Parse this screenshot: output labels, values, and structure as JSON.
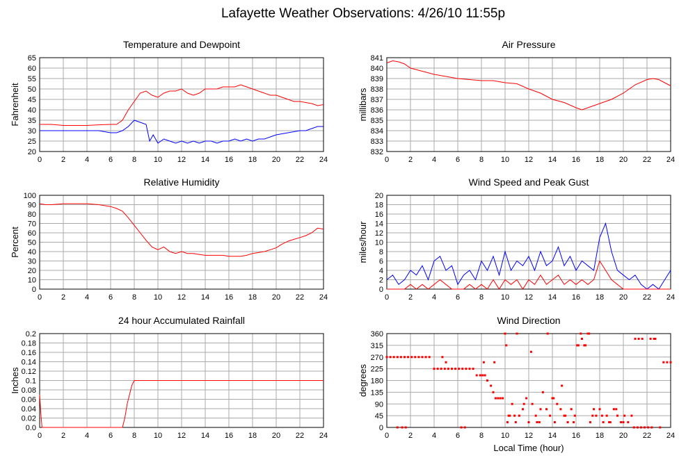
{
  "title": "Lafayette Weather Observations: 4/26/10 11:55p",
  "xlabel_bottom": "Local Time (hour)",
  "colors": {
    "red": "#ff0000",
    "blue": "#0000ff",
    "grid": "#aaaaaa"
  },
  "chart_data": [
    {
      "id": "temp",
      "type": "line",
      "title": "Temperature and Dewpoint",
      "ylabel": "Fahrenheit",
      "xlim": [
        0,
        24
      ],
      "ylim": [
        20,
        65
      ],
      "xticks": [
        0,
        2,
        4,
        6,
        8,
        10,
        12,
        14,
        16,
        18,
        20,
        22,
        24
      ],
      "yticks": [
        20,
        25,
        30,
        35,
        40,
        45,
        50,
        55,
        60,
        65
      ],
      "series": [
        {
          "color": "#ff0000",
          "x": [
            0,
            1,
            2,
            3,
            4,
            5,
            6,
            6.5,
            7,
            7.5,
            8,
            8.5,
            9,
            9.5,
            10,
            10.5,
            11,
            11.5,
            12,
            12.5,
            13,
            13.5,
            14,
            14.5,
            15,
            15.5,
            16,
            16.5,
            17,
            17.5,
            18,
            18.5,
            19,
            19.5,
            20,
            20.5,
            21,
            21.5,
            22,
            22.5,
            23,
            23.5,
            24
          ],
          "y": [
            33,
            33,
            32.5,
            32.5,
            32.5,
            32.8,
            33,
            33,
            35,
            40,
            44,
            48,
            49,
            47,
            46,
            48,
            49,
            49,
            50,
            48,
            47,
            48,
            50,
            50,
            50,
            51,
            51,
            51,
            52,
            51,
            50,
            49,
            48,
            47,
            47,
            46,
            45,
            44,
            44,
            43.5,
            43,
            42,
            42.5
          ]
        },
        {
          "color": "#0000ff",
          "x": [
            0,
            1,
            2,
            3,
            4,
            5,
            6,
            6.5,
            7,
            7.5,
            8,
            8.5,
            9,
            9.3,
            9.6,
            10,
            10.5,
            11,
            11.5,
            12,
            12.5,
            13,
            13.5,
            14,
            14.5,
            15,
            15.5,
            16,
            16.5,
            17,
            17.5,
            18,
            18.5,
            19,
            19.5,
            20,
            20.5,
            21,
            21.5,
            22,
            22.5,
            23,
            23.5,
            24
          ],
          "y": [
            30,
            30,
            30,
            30,
            30,
            30,
            29,
            29,
            30,
            32,
            35,
            34,
            33,
            25,
            28,
            24,
            26,
            25,
            24,
            25,
            24,
            25,
            24,
            25,
            25,
            24,
            25,
            25,
            26,
            25,
            26,
            25,
            26,
            26,
            27,
            28,
            28.5,
            29,
            29.5,
            30,
            30,
            31,
            32,
            32
          ]
        }
      ]
    },
    {
      "id": "pressure",
      "type": "line",
      "title": "Air Pressure",
      "ylabel": "millibars",
      "xlim": [
        0,
        24
      ],
      "ylim": [
        832,
        841
      ],
      "xticks": [
        0,
        2,
        4,
        6,
        8,
        10,
        12,
        14,
        16,
        18,
        20,
        22,
        24
      ],
      "yticks": [
        832,
        833,
        834,
        835,
        836,
        837,
        838,
        839,
        840,
        841
      ],
      "ytick_labels": [
        "832",
        "833",
        "834",
        "835",
        "836",
        "837",
        "838",
        "839",
        "840",
        "841"
      ],
      "series": [
        {
          "color": "#ff0000",
          "x": [
            0,
            0.5,
            1,
            1.5,
            2,
            3,
            4,
            5,
            6,
            7,
            8,
            9,
            10,
            11,
            12,
            13,
            14,
            15,
            16,
            16.5,
            17,
            18,
            19,
            20,
            21,
            22,
            22.5,
            23,
            23.5,
            24
          ],
          "y": [
            840.5,
            840.7,
            840.6,
            840.4,
            840.0,
            839.7,
            839.4,
            839.2,
            839.0,
            838.9,
            838.8,
            838.8,
            838.6,
            838.5,
            838.0,
            837.6,
            837.0,
            836.7,
            836.2,
            836.0,
            836.2,
            836.6,
            837.0,
            837.6,
            838.4,
            838.9,
            839.0,
            838.9,
            838.6,
            838.3
          ]
        }
      ]
    },
    {
      "id": "humidity",
      "type": "line",
      "title": "Relative Humidity",
      "ylabel": "Percent",
      "xlim": [
        0,
        24
      ],
      "ylim": [
        0,
        100
      ],
      "xticks": [
        0,
        2,
        4,
        6,
        8,
        10,
        12,
        14,
        16,
        18,
        20,
        22,
        24
      ],
      "yticks": [
        0,
        10,
        20,
        30,
        40,
        50,
        60,
        70,
        80,
        90,
        100
      ],
      "series": [
        {
          "color": "#ff0000",
          "x": [
            0,
            0.5,
            1,
            2,
            3,
            4,
            5,
            6,
            6.5,
            7,
            7.5,
            8,
            8.5,
            9,
            9.5,
            10,
            10.5,
            11,
            11.5,
            12,
            12.5,
            13,
            13.5,
            14,
            14.5,
            15,
            15.5,
            16,
            16.5,
            17,
            17.5,
            18,
            18.5,
            19,
            19.5,
            20,
            20.5,
            21,
            21.5,
            22,
            22.5,
            23,
            23.5,
            24
          ],
          "y": [
            91,
            90,
            90,
            91,
            91,
            91,
            90,
            88,
            86,
            83,
            76,
            68,
            60,
            52,
            45,
            42,
            45,
            40,
            38,
            40,
            38,
            38,
            37,
            36,
            36,
            36,
            36,
            35,
            35,
            35,
            36,
            38,
            39,
            40,
            42,
            44,
            48,
            51,
            53,
            55,
            57,
            60,
            65,
            64
          ]
        }
      ]
    },
    {
      "id": "wind",
      "type": "line",
      "title": "Wind Speed and Peak Gust",
      "ylabel": "miles/hour",
      "xlim": [
        0,
        24
      ],
      "ylim": [
        0,
        20
      ],
      "xticks": [
        0,
        2,
        4,
        6,
        8,
        10,
        12,
        14,
        16,
        18,
        20,
        22,
        24
      ],
      "yticks": [
        0,
        2,
        4,
        6,
        8,
        10,
        12,
        14,
        16,
        18,
        20
      ],
      "series": [
        {
          "color": "#0000ff",
          "x": [
            0,
            0.5,
            1,
            1.5,
            2,
            2.5,
            3,
            3.5,
            4,
            4.5,
            5,
            5.5,
            6,
            6.5,
            7,
            7.5,
            8,
            8.5,
            9,
            9.5,
            10,
            10.5,
            11,
            11.5,
            12,
            12.5,
            13,
            13.5,
            14,
            14.5,
            15,
            15.5,
            16,
            16.5,
            17,
            17.5,
            18,
            18.5,
            19,
            19.5,
            20,
            20.5,
            21,
            21.5,
            22,
            22.5,
            23,
            23.5,
            24
          ],
          "y": [
            2,
            3,
            1,
            2,
            4,
            3,
            5,
            2,
            6,
            7,
            4,
            5,
            1,
            3,
            4,
            2,
            6,
            4,
            7,
            3,
            8,
            4,
            6,
            5,
            7,
            4,
            8,
            5,
            6,
            9,
            5,
            7,
            4,
            6,
            5,
            4,
            11,
            14,
            8,
            4,
            3,
            2,
            3,
            1,
            0,
            1,
            0,
            2,
            4
          ]
        },
        {
          "color": "#ff0000",
          "x": [
            0,
            0.5,
            1,
            1.5,
            2,
            2.5,
            3,
            3.5,
            4,
            4.5,
            5,
            5.5,
            6,
            6.5,
            7,
            7.5,
            8,
            8.5,
            9,
            9.5,
            10,
            10.5,
            11,
            11.5,
            12,
            12.5,
            13,
            13.5,
            14,
            14.5,
            15,
            15.5,
            16,
            16.5,
            17,
            17.5,
            18,
            18.5,
            19,
            19.5,
            20,
            20.5,
            21,
            21.5,
            22,
            22.5,
            23,
            23.5,
            24
          ],
          "y": [
            0,
            0,
            0,
            0,
            1,
            0,
            1,
            0,
            1,
            2,
            1,
            0,
            0,
            0,
            1,
            0,
            1,
            0,
            2,
            0,
            2,
            1,
            2,
            0,
            2,
            1,
            3,
            1,
            2,
            3,
            1,
            2,
            1,
            2,
            1,
            2,
            6,
            4,
            2,
            1,
            0,
            0,
            0,
            0,
            0,
            0,
            0,
            0,
            0
          ]
        }
      ]
    },
    {
      "id": "rain",
      "type": "line",
      "title": "24 hour Accumulated Rainfall",
      "ylabel": "Inches",
      "xlim": [
        0,
        24
      ],
      "ylim": [
        0,
        0.2
      ],
      "xticks": [
        0,
        2,
        4,
        6,
        8,
        10,
        12,
        14,
        16,
        18,
        20,
        22,
        24
      ],
      "yticks": [
        0,
        0.02,
        0.04,
        0.06,
        0.08,
        0.1,
        0.12,
        0.14,
        0.16,
        0.18,
        0.2
      ],
      "ytick_labels": [
        "0.0",
        "0.02",
        "0.04",
        "0.06",
        "0.08",
        "0.1",
        "0.12",
        "0.14",
        "0.16",
        "0.18",
        "0.2"
      ],
      "series": [
        {
          "color": "#ff0000",
          "x": [
            0,
            0.1,
            0.2,
            7,
            7.2,
            7.4,
            7.6,
            7.8,
            8,
            24
          ],
          "y": [
            0.07,
            0.03,
            0,
            0,
            0.02,
            0.05,
            0.07,
            0.09,
            0.1,
            0.1
          ]
        }
      ]
    },
    {
      "id": "direction",
      "type": "scatter",
      "title": "Wind Direction",
      "ylabel": "degrees",
      "xlabel": "Local Time (hour)",
      "xlim": [
        0,
        24
      ],
      "ylim": [
        0,
        360
      ],
      "xticks": [
        0,
        2,
        4,
        6,
        8,
        10,
        12,
        14,
        16,
        18,
        20,
        22,
        24
      ],
      "yticks": [
        0,
        45,
        90,
        135,
        180,
        225,
        270,
        315,
        360
      ],
      "series": [
        {
          "color": "#ff0000",
          "x": [
            0,
            0.3,
            0.6,
            0.9,
            1.2,
            1.5,
            1.8,
            2.1,
            2.4,
            2.7,
            3.0,
            3.3,
            3.6,
            0.9,
            1.3,
            1.6,
            4.0,
            4.3,
            4.6,
            4.9,
            5.2,
            5.5,
            5.8,
            6.1,
            6.4,
            6.7,
            7.0,
            7.3,
            5.0,
            6.3,
            6.6,
            4.7,
            7.6,
            7.9,
            8.1,
            8.3,
            8.5,
            8.8,
            9.0,
            9.2,
            9.4,
            9.6,
            9.8,
            8.2,
            9.1,
            10.0,
            10.2,
            10.4,
            10.6,
            10.9,
            11.2,
            11.5,
            11.8,
            12.0,
            12.3,
            12.6,
            12.9,
            13.2,
            13.5,
            13.8,
            14.1,
            14.4,
            14.7,
            15.0,
            15.3,
            15.6,
            15.9,
            10.1,
            10.3,
            11.0,
            12.2,
            13.0,
            13.6,
            14.2,
            14.8,
            10.8,
            11.6,
            12.7,
            14.0,
            15.1,
            15.8,
            16.2,
            16.5,
            16.8,
            17.1,
            17.4,
            17.7,
            18.0,
            18.3,
            18.6,
            18.9,
            19.2,
            19.5,
            19.8,
            20.1,
            20.4,
            20.7,
            16.1,
            16.4,
            16.7,
            17.0,
            17.2,
            17.5,
            18.2,
            18.8,
            19.4,
            20.0,
            20.9,
            21.2,
            21.5,
            21.8,
            22.1,
            22.4,
            22.7,
            21.0,
            21.3,
            21.6,
            22.3,
            22.6,
            23.1,
            23.4,
            23.7,
            24.0
          ],
          "y": [
            270,
            270,
            270,
            270,
            270,
            270,
            270,
            270,
            270,
            270,
            270,
            270,
            270,
            0,
            0,
            0,
            225,
            225,
            225,
            225,
            225,
            225,
            225,
            225,
            225,
            225,
            225,
            225,
            250,
            0,
            0,
            270,
            200,
            200,
            200,
            200,
            180,
            160,
            135,
            112,
            112,
            112,
            112,
            250,
            250,
            360,
            20,
            45,
            90,
            20,
            45,
            70,
            112,
            20,
            90,
            45,
            20,
            135,
            70,
            45,
            112,
            90,
            70,
            45,
            20,
            70,
            45,
            315,
            45,
            360,
            290,
            70,
            360,
            20,
            160,
            45,
            90,
            20,
            112,
            45,
            20,
            315,
            340,
            315,
            360,
            45,
            45,
            70,
            20,
            45,
            20,
            70,
            45,
            20,
            45,
            20,
            45,
            315,
            360,
            315,
            360,
            20,
            70,
            45,
            20,
            70,
            20,
            0,
            0,
            0,
            0,
            0,
            0,
            340,
            340,
            340,
            340,
            340,
            340,
            0,
            250,
            250,
            250
          ]
        }
      ]
    }
  ],
  "panels_meta": [
    {
      "id": "temp",
      "xpos": "left",
      "row": 0
    },
    {
      "id": "pressure",
      "xpos": "right",
      "row": 0
    },
    {
      "id": "humidity",
      "xpos": "left",
      "row": 1
    },
    {
      "id": "wind",
      "xpos": "right",
      "row": 1
    },
    {
      "id": "rain",
      "xpos": "left",
      "row": 2
    },
    {
      "id": "direction",
      "xpos": "right",
      "row": 2
    }
  ]
}
